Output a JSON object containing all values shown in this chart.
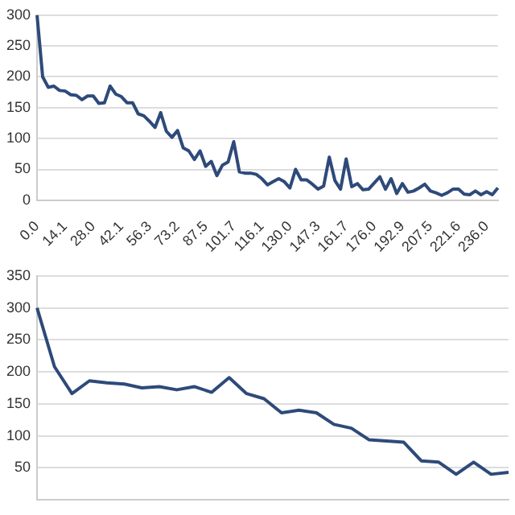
{
  "chart_data": [
    {
      "type": "line",
      "categories": [
        "0.0",
        null,
        null,
        null,
        null,
        "14.1",
        null,
        null,
        null,
        null,
        "28.0",
        null,
        null,
        null,
        null,
        "42.1",
        null,
        null,
        null,
        null,
        "56.3",
        null,
        null,
        null,
        null,
        "73.2",
        null,
        null,
        null,
        null,
        "87.5",
        null,
        null,
        null,
        null,
        "101.7",
        null,
        null,
        null,
        null,
        "116.1",
        null,
        null,
        null,
        null,
        "130.0",
        null,
        null,
        null,
        null,
        "147.3",
        null,
        null,
        null,
        null,
        "161.7",
        null,
        null,
        null,
        null,
        "176.0",
        null,
        null,
        null,
        null,
        "192.9",
        null,
        null,
        null,
        null,
        "207.5",
        null,
        null,
        null,
        null,
        "221.6",
        null,
        null,
        null,
        null,
        "236.0",
        null,
        null
      ],
      "series": [
        {
          "color": "#2e4a7a",
          "values": [
            300,
            200,
            183,
            185,
            178,
            177,
            171,
            170,
            163,
            169,
            169,
            157,
            158,
            185,
            172,
            168,
            158,
            158,
            140,
            137,
            128,
            118,
            142,
            112,
            102,
            113,
            85,
            80,
            66,
            80,
            55,
            63,
            40,
            57,
            62,
            95,
            46,
            44,
            44,
            42,
            35,
            25,
            30,
            35,
            30,
            20,
            50,
            33,
            33,
            26,
            18,
            23,
            70,
            32,
            18,
            67,
            22,
            27,
            17,
            18,
            28,
            38,
            18,
            35,
            11,
            27,
            13,
            15,
            20,
            26,
            15,
            12,
            8,
            12,
            18,
            18,
            10,
            9,
            15,
            9,
            14,
            9,
            20
          ]
        }
      ],
      "ylim": [
        0,
        300
      ],
      "yticks": [
        0,
        50,
        100,
        150,
        200,
        250,
        300
      ],
      "grid": "y",
      "marker": "none",
      "line_style": "solid",
      "legend": false
    },
    {
      "type": "line",
      "categories": [
        null,
        null,
        null,
        null,
        null,
        null,
        null,
        null,
        null,
        null,
        null,
        null,
        null,
        null,
        null,
        null,
        null,
        null,
        null,
        null,
        null,
        null,
        null,
        null,
        null,
        null,
        null,
        null
      ],
      "series": [
        {
          "color": "#2e4a7a",
          "values": [
            300,
            208,
            166,
            186,
            183,
            181,
            175,
            177,
            172,
            177,
            168,
            191,
            166,
            158,
            136,
            140,
            136,
            118,
            112,
            94,
            92,
            90,
            61,
            59,
            40,
            59,
            40,
            43
          ]
        }
      ],
      "ylim": [
        0,
        350
      ],
      "yticks": [
        50,
        100,
        150,
        200,
        250,
        300,
        350
      ],
      "grid": "y",
      "marker": "none",
      "line_style": "solid",
      "legend": false,
      "tick_labels": "y"
    }
  ]
}
